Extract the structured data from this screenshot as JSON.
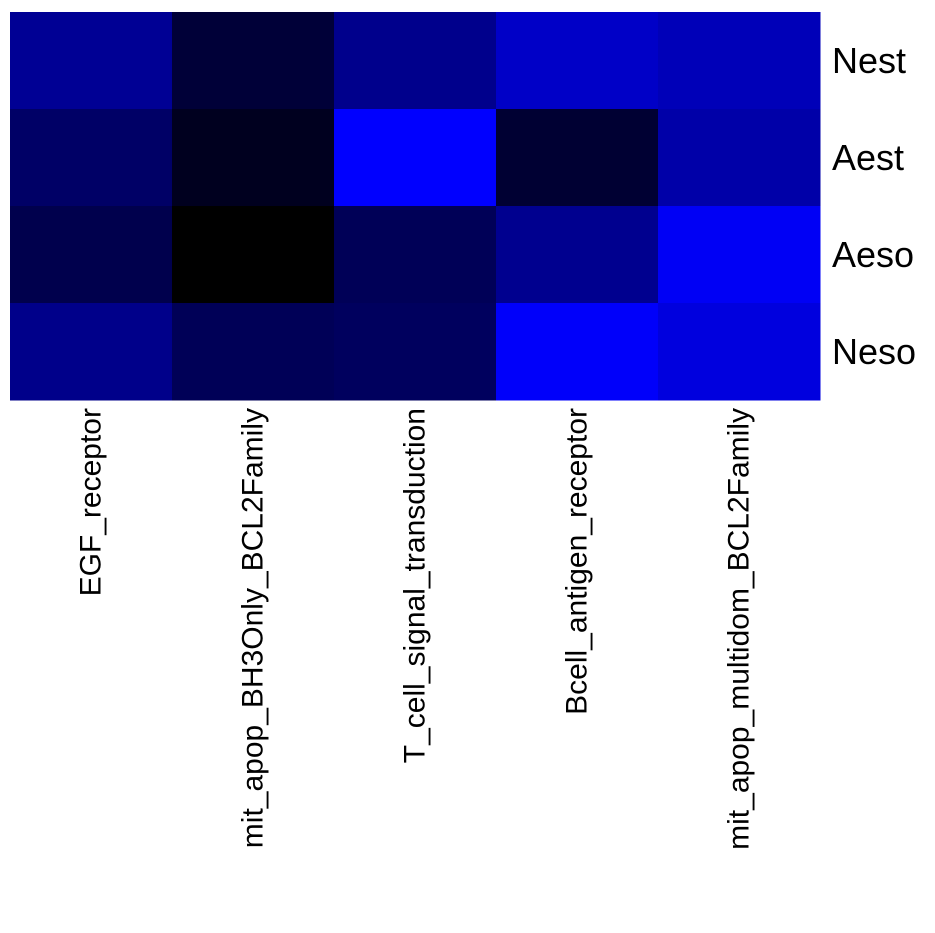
{
  "chart_data": {
    "type": "heatmap",
    "title": "",
    "xlabel": "",
    "ylabel": "",
    "rows": [
      "Nest",
      "Aest",
      "Aeso",
      "Neso"
    ],
    "columns": [
      "EGF_receptor",
      "mit_apop_BH3Only_BCL2Family",
      "T_cell_signal_transduction",
      "Bcell_antigen_receptor",
      "mit_apop_multidom_BCL2Family"
    ],
    "values": [
      [
        0.58,
        0.22,
        0.55,
        0.78,
        0.72
      ],
      [
        0.4,
        0.12,
        1.0,
        0.2,
        0.66
      ],
      [
        0.3,
        0.0,
        0.34,
        0.56,
        0.96
      ],
      [
        0.54,
        0.34,
        0.37,
        0.98,
        0.87
      ]
    ],
    "value_range": [
      0,
      1
    ],
    "color_scale": {
      "low": "#000000",
      "high": "#0000ff"
    },
    "grid": false,
    "legend": "none"
  }
}
